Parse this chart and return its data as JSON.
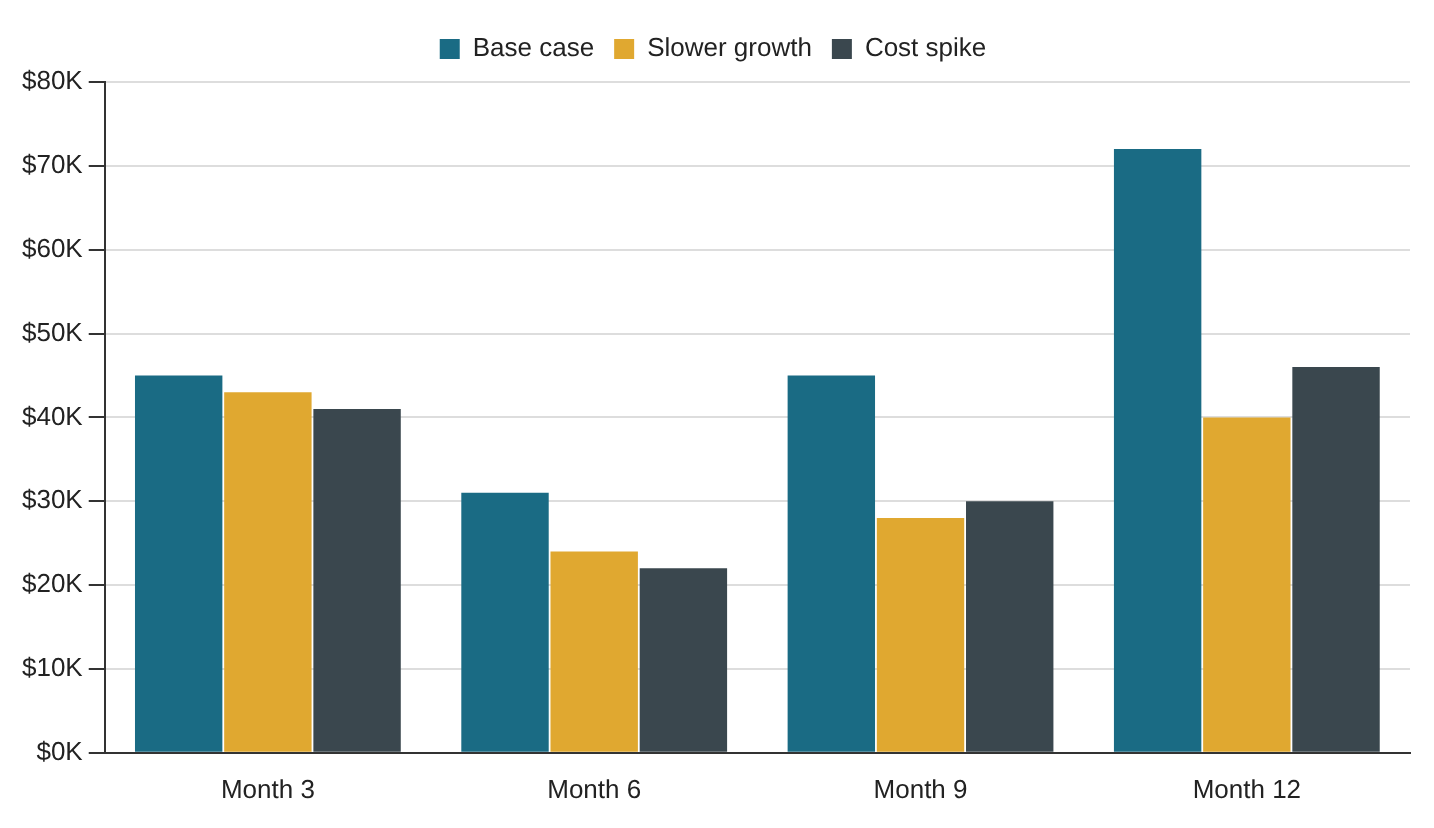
{
  "chart_data": {
    "type": "bar",
    "categories": [
      "Month 3",
      "Month 6",
      "Month 9",
      "Month 12"
    ],
    "series": [
      {
        "name": "Base case",
        "color": "#1a6b84",
        "values": [
          45000,
          31000,
          45000,
          72000
        ]
      },
      {
        "name": "Slower growth",
        "color": "#e0a830",
        "values": [
          43000,
          24000,
          28000,
          40000
        ]
      },
      {
        "name": "Cost spike",
        "color": "#3a474e",
        "values": [
          41000,
          22000,
          30000,
          46000
        ]
      }
    ],
    "ylim": [
      0,
      80000
    ],
    "yticks": [
      {
        "value": 0,
        "label": "$0K"
      },
      {
        "value": 10000,
        "label": "$10K"
      },
      {
        "value": 20000,
        "label": "$20K"
      },
      {
        "value": 30000,
        "label": "$30K"
      },
      {
        "value": 40000,
        "label": "$40K"
      },
      {
        "value": 50000,
        "label": "$50K"
      },
      {
        "value": 60000,
        "label": "$60K"
      },
      {
        "value": 70000,
        "label": "$70K"
      },
      {
        "value": 80000,
        "label": "$80K"
      }
    ],
    "grid": "y",
    "legend": "top"
  }
}
